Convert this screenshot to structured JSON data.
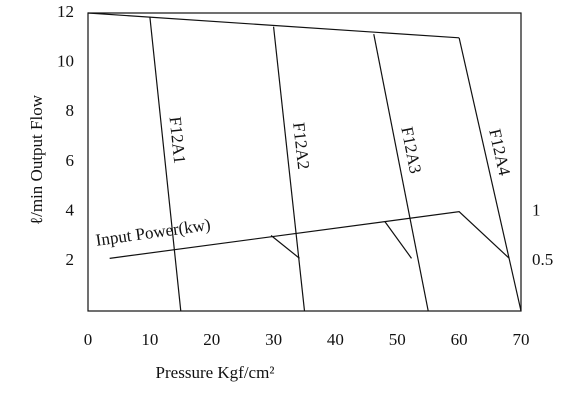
{
  "chart_data": {
    "type": "line",
    "x_label": "Pressure Kgf/cm²",
    "y_label": "ℓ/min Output Flow",
    "xlim": [
      0,
      70
    ],
    "xticks": [
      0,
      10,
      20,
      30,
      40,
      50,
      60,
      70
    ],
    "ylim": [
      0,
      12
    ],
    "yticks": [
      2,
      4,
      6,
      8,
      10,
      12
    ],
    "y2lim": [
      0,
      3
    ],
    "y2ticks": [
      0.5,
      1
    ],
    "color": "#111111",
    "series": [
      {
        "x": [
          0,
          60
        ],
        "values": [
          12,
          11
        ]
      },
      {
        "name": "F12A1",
        "x": [
          10,
          15
        ],
        "values": [
          11.85,
          0
        ]
      },
      {
        "name": "F12A2",
        "x": [
          30,
          35
        ],
        "values": [
          11.45,
          0
        ]
      },
      {
        "name": "F12A3",
        "x": [
          46.2,
          55
        ],
        "values": [
          11.15,
          0
        ]
      },
      {
        "name": "F12A4",
        "x": [
          60,
          70
        ],
        "values": [
          11,
          0
        ]
      },
      {
        "name": "Input Power(kw)",
        "axis": "y2",
        "x": [
          3.5,
          60,
          68.1,
          null,
          29.6,
          34.2,
          null,
          48,
          52.3
        ],
        "values": [
          0.53,
          1,
          0.53,
          null,
          0.76,
          0.53,
          null,
          0.9,
          0.53
        ]
      }
    ]
  }
}
